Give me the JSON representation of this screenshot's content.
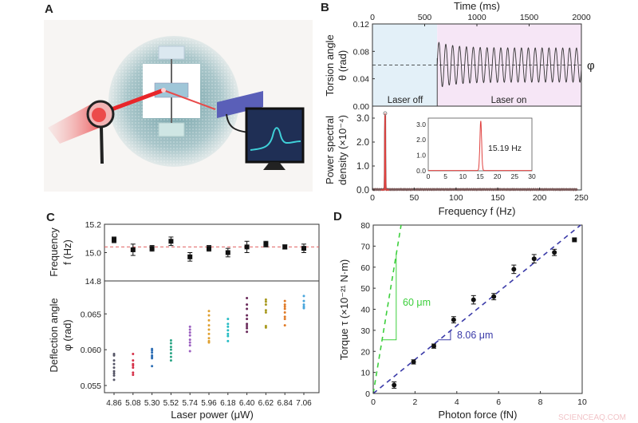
{
  "panel_letters": {
    "a": "A",
    "b": "B",
    "c": "C",
    "d": "D"
  },
  "watermark": "SCIENCEAQ.COM",
  "illustration": {
    "beam_color": "#e8262a",
    "monitor_trace_color": "#3fd0d8",
    "background_color": "#6e9ea4"
  },
  "chart_data": [
    {
      "panel": "B-top",
      "type": "line",
      "xlabel": "Time (ms)",
      "ylabel_line1": "Torsion angle",
      "ylabel_line2": "θ (rad)",
      "xlim": [
        0,
        2000
      ],
      "ylim": [
        0,
        0.12
      ],
      "xticks": [
        0,
        500,
        1000,
        1500,
        2000
      ],
      "yticks": [
        "0.00",
        "0.04",
        "0.08",
        "0.12"
      ],
      "laser_on_time_ms": 620,
      "mean_line": 0.06,
      "mean_label": "φ",
      "oscillation_frequency_hz": 15.19,
      "amplitude_rad": 0.025,
      "regions": [
        {
          "label": "Laser off",
          "color": "#e3f0f8"
        },
        {
          "label": "Laser on",
          "color": "#f6e6f6"
        }
      ]
    },
    {
      "panel": "B-bottom",
      "type": "line",
      "xlabel": "Frequency f (Hz)",
      "ylabel_line1": "Power spectral",
      "ylabel_line2": "density (×10⁻⁴)",
      "xlim": [
        0,
        250
      ],
      "ylim": [
        0,
        3.5
      ],
      "xticks": [
        0,
        50,
        100,
        150,
        200,
        250
      ],
      "yticks": [
        "0.0",
        "1.0",
        "2.0",
        "3.0"
      ],
      "peak_frequency_hz": 15.19,
      "peak_value": 3.2,
      "series_color": "#e0413f",
      "inset": {
        "xlim": [
          0,
          30
        ],
        "ylim": [
          0,
          3.4
        ],
        "xticks": [
          0,
          5,
          10,
          15,
          20,
          25,
          30
        ],
        "yticks": [
          "0.0",
          "1.0",
          "2.0",
          "3.0"
        ],
        "annotation": "15.19 Hz"
      }
    },
    {
      "panel": "C-top",
      "type": "scatter",
      "ylabel_line1": "Frequency",
      "ylabel_line2": "f (Hz)",
      "ylim": [
        14.8,
        15.2
      ],
      "yticks": [
        "14.8",
        "15.0",
        "15.2"
      ],
      "categories": [
        "4.86",
        "5.08",
        "5.30",
        "5.52",
        "5.74",
        "5.96",
        "6.18",
        "6.40",
        "6.62",
        "6.84",
        "7.06"
      ],
      "values": [
        15.09,
        15.02,
        15.03,
        15.08,
        14.97,
        15.03,
        15.0,
        15.04,
        15.06,
        15.04,
        15.03
      ],
      "errors": [
        0.02,
        0.04,
        0.02,
        0.03,
        0.03,
        0.02,
        0.03,
        0.04,
        0.02,
        0.015,
        0.03
      ],
      "mean_line": 15.04
    },
    {
      "panel": "C-bottom",
      "type": "scatter",
      "xlabel": "Laser power (μW)",
      "ylabel_line1": "Deflection angle",
      "ylabel_line2": "φ (rad)",
      "ylim": [
        0.054,
        0.0696
      ],
      "yticks": [
        "0.055",
        "0.060",
        "0.065"
      ],
      "categories": [
        "4.86",
        "5.08",
        "5.30",
        "5.52",
        "5.74",
        "5.96",
        "6.18",
        "6.40",
        "6.62",
        "6.84",
        "7.06"
      ],
      "colors": [
        "#555566",
        "#d6324a",
        "#2f6fb5",
        "#2aa585",
        "#9b5fc0",
        "#e0a030",
        "#26bcc4",
        "#6a2a5a",
        "#a89a20",
        "#e07b28",
        "#4aa6dc"
      ],
      "series": [
        [
          0.0594,
          0.0592,
          0.0585,
          0.058,
          0.0575,
          0.057,
          0.0567,
          0.0564,
          0.0558
        ],
        [
          0.0594,
          0.0585,
          0.058,
          0.0578,
          0.0575,
          0.0568,
          0.0565
        ],
        [
          0.0601,
          0.0599,
          0.0596,
          0.0592,
          0.059,
          0.0588,
          0.0577
        ],
        [
          0.0613,
          0.0609,
          0.0604,
          0.06,
          0.0595,
          0.059,
          0.0585
        ],
        [
          0.0632,
          0.0628,
          0.0624,
          0.062,
          0.0614,
          0.061,
          0.0606,
          0.0598
        ],
        [
          0.0654,
          0.0648,
          0.0641,
          0.0634,
          0.0628,
          0.0622,
          0.0616,
          0.0612,
          0.061
        ],
        [
          0.0643,
          0.0636,
          0.0632,
          0.0627,
          0.0622,
          0.0619,
          0.0612
        ],
        [
          0.0672,
          0.0663,
          0.0657,
          0.0648,
          0.0643,
          0.0636,
          0.0633,
          0.063,
          0.0625
        ],
        [
          0.067,
          0.0667,
          0.0663,
          0.0655,
          0.0652,
          0.0633,
          0.0631
        ],
        [
          0.0668,
          0.0663,
          0.066,
          0.0657,
          0.0652,
          0.0646,
          0.0643,
          0.0634
        ],
        [
          0.0675,
          0.0668,
          0.0663,
          0.066,
          0.0658
        ]
      ]
    },
    {
      "panel": "D",
      "type": "scatter",
      "xlabel": "Photon force (fN)",
      "ylabel": "Torque τ (×10⁻²¹ N·m)",
      "xlim": [
        0,
        10
      ],
      "ylim": [
        0,
        80
      ],
      "xticks": [
        0,
        2,
        4,
        6,
        8,
        10
      ],
      "yticks": [
        0,
        10,
        20,
        30,
        40,
        50,
        60,
        70,
        80
      ],
      "x": [
        1.0,
        1.93,
        2.9,
        3.85,
        4.8,
        5.77,
        6.73,
        7.7,
        8.67,
        9.63
      ],
      "y": [
        4,
        15,
        22.5,
        35,
        44.5,
        46,
        59,
        64,
        67,
        73
      ],
      "errors": [
        1.5,
        1,
        1,
        1.5,
        2,
        1.5,
        2,
        2,
        1.5,
        0
      ],
      "fit_lines": [
        {
          "label": "60 μm",
          "slope": 60,
          "color": "#3ccf3c"
        },
        {
          "label": "8.06 μm",
          "slope": 8.06,
          "color": "#3a3aa8"
        }
      ]
    }
  ]
}
